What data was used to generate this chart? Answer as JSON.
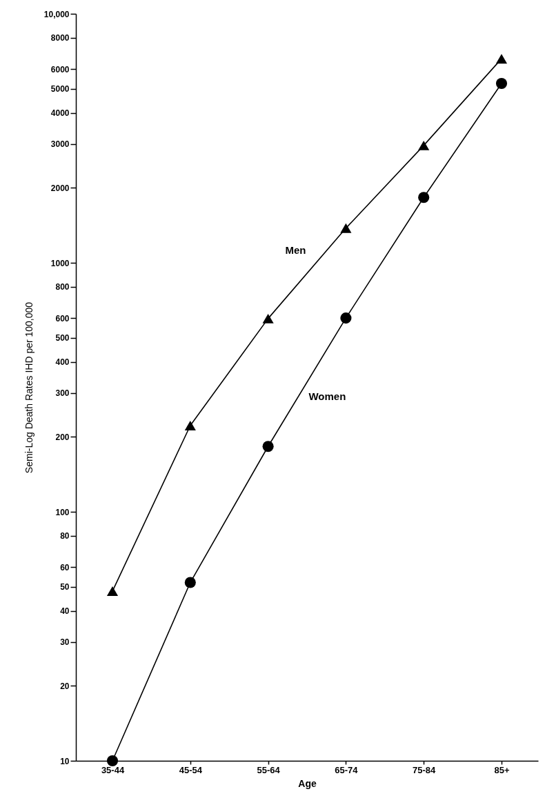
{
  "chart_data": {
    "type": "line",
    "xlabel": "Age",
    "ylabel": "Semi-Log Death Rates IHD  per 100,000",
    "categories": [
      "35-44",
      "45-54",
      "55-64",
      "65-74",
      "75-84",
      "85+"
    ],
    "series": [
      {
        "name": "Men",
        "color": "#000000",
        "marker": "triangle",
        "values": [
          48,
          222,
          597,
          1377,
          2960,
          6600
        ]
      },
      {
        "name": "Women",
        "color": "#000000",
        "marker": "circle",
        "values": [
          10,
          52,
          183,
          600,
          1830,
          5250
        ]
      }
    ],
    "log": "y",
    "ylim": [
      10,
      10000
    ],
    "yticks": [
      10,
      20,
      30,
      40,
      50,
      60,
      80,
      100,
      200,
      300,
      400,
      500,
      600,
      800,
      1000,
      2000,
      3000,
      4000,
      5000,
      6000,
      8000,
      {
        "value": 10000,
        "label": "10,000"
      }
    ],
    "grid": false,
    "line_style": "solid"
  }
}
